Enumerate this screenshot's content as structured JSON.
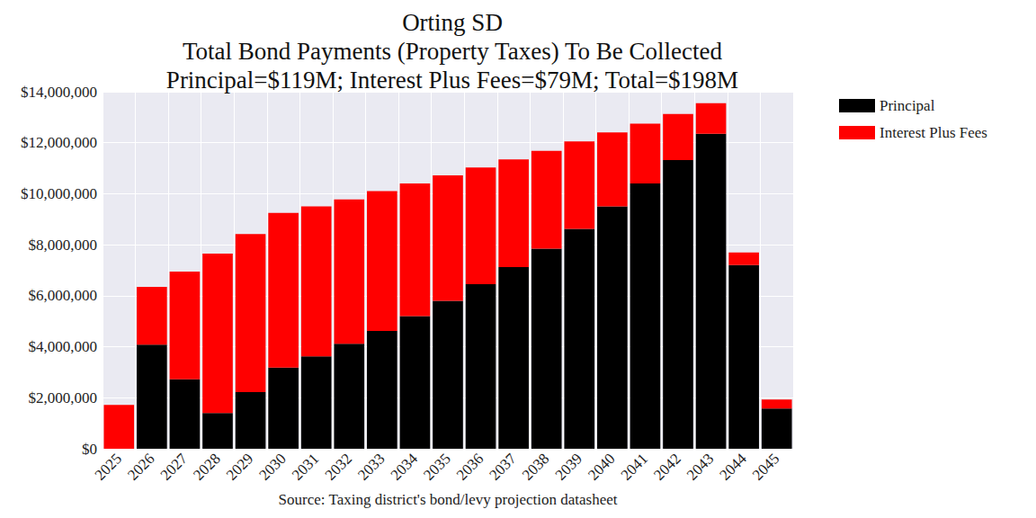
{
  "chart_data": {
    "type": "bar",
    "title": "Orting SD\nTotal Bond Payments (Property Taxes) To Be Collected\nPrincipal=$119M; Interest Plus Fees=$79M; Total=$198M",
    "x_label": "Source: Taxing district's bond/levy projection datasheet",
    "categories": [
      "2025",
      "2026",
      "2027",
      "2028",
      "2029",
      "2030",
      "2031",
      "2032",
      "2033",
      "2034",
      "2035",
      "2036",
      "2037",
      "2038",
      "2039",
      "2040",
      "2041",
      "2042",
      "2043",
      "2044",
      "2045"
    ],
    "series": [
      {
        "name": "Principal",
        "color": "#000000",
        "values": [
          0,
          4080000,
          2720000,
          1400000,
          2220000,
          3180000,
          3620000,
          4120000,
          4620000,
          5200000,
          5800000,
          6450000,
          7120000,
          7850000,
          8620000,
          9500000,
          10400000,
          11320000,
          12350000,
          7200000,
          1580000
        ]
      },
      {
        "name": "Interest Plus Fees",
        "color": "#ff0000",
        "values": [
          1720000,
          2270000,
          4230000,
          6250000,
          6200000,
          6070000,
          5880000,
          5660000,
          5480000,
          5200000,
          4920000,
          4580000,
          4230000,
          3830000,
          3430000,
          2900000,
          2350000,
          1810000,
          1200000,
          500000,
          350000
        ]
      }
    ],
    "ylim": [
      0,
      14000000
    ],
    "yticks": [
      {
        "value": 0,
        "label": "$0"
      },
      {
        "value": 2000000,
        "label": "$2,000,000"
      },
      {
        "value": 4000000,
        "label": "$4,000,000"
      },
      {
        "value": 6000000,
        "label": "$6,000,000"
      },
      {
        "value": 8000000,
        "label": "$8,000,000"
      },
      {
        "value": 10000000,
        "label": "$10,000,000"
      },
      {
        "value": 12000000,
        "label": "$12,000,000"
      },
      {
        "value": 14000000,
        "label": "$14,000,000"
      }
    ],
    "stacked": true,
    "grid": true,
    "legend": "right",
    "data_labels": false
  }
}
